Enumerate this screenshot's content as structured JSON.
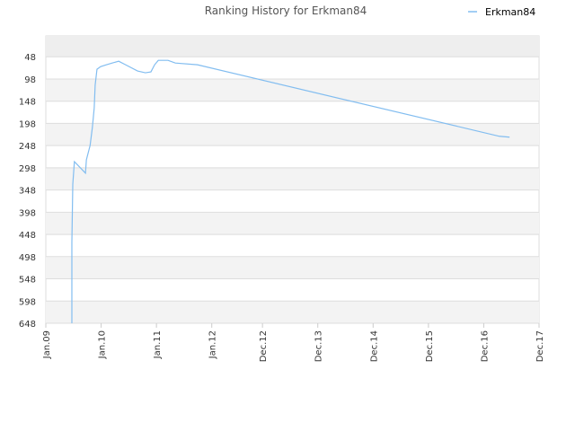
{
  "chart_data": {
    "type": "line",
    "title": "Ranking History for Erkman84",
    "x": [
      5.65,
      5.65,
      5.85,
      6.2,
      8.6,
      8.8,
      9.6,
      10.1,
      10.5,
      10.7,
      11.1,
      11.9,
      13.1,
      14.4,
      15.8,
      17.3,
      19.9,
      21.6,
      22.8,
      23.6,
      24.4,
      26.5,
      28.1,
      32.9,
      98.4,
      100.6
    ],
    "series": [
      {
        "name": "Erkman84",
        "color": "#82bdf0",
        "values": [
          648,
          466,
          335,
          284,
          310,
          280,
          248,
          207,
          163,
          112,
          76,
          70,
          66,
          62,
          58,
          66,
          80,
          84,
          82,
          66,
          56,
          56,
          62,
          66,
          227,
          229
        ]
      }
    ],
    "xlim": [
      0,
      107
    ],
    "xticks": [
      {
        "value": 0,
        "label": "Jan.09"
      },
      {
        "value": 12,
        "label": "Jan.10"
      },
      {
        "value": 24,
        "label": "Jan.11"
      },
      {
        "value": 36,
        "label": "Jan.12"
      },
      {
        "value": 47,
        "label": "Dec.12"
      },
      {
        "value": 59,
        "label": "Dec.13"
      },
      {
        "value": 71,
        "label": "Dec.14"
      },
      {
        "value": 83,
        "label": "Dec.15"
      },
      {
        "value": 95,
        "label": "Dec.16"
      },
      {
        "value": 107,
        "label": "Dec.17"
      }
    ],
    "ylim": [
      648,
      1
    ],
    "yticks": [
      48,
      98,
      148,
      198,
      248,
      298,
      348,
      398,
      448,
      498,
      548,
      598,
      648
    ],
    "grid": true,
    "legend": "top-right"
  }
}
